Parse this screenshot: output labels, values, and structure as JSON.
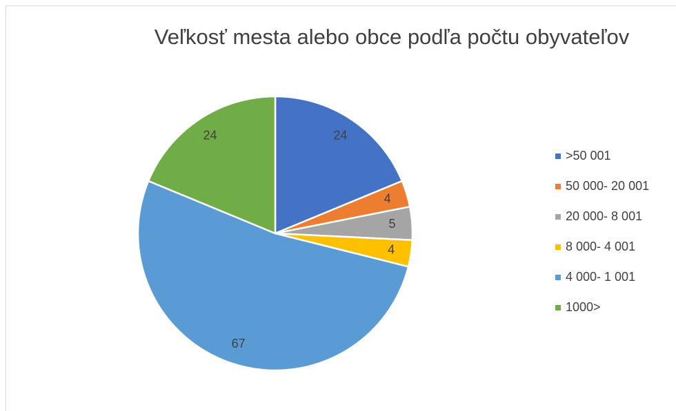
{
  "chart_data": {
    "type": "pie",
    "title": "Veľkosť mesta alebo obce podľa počtu obyvateľov",
    "categories": [
      ">50 001",
      "50 000- 20 001",
      "20 000- 8 001",
      "8 000- 4 001",
      "4 000- 1 001",
      "1000>"
    ],
    "values": [
      24,
      4,
      5,
      4,
      67,
      24
    ],
    "colors": [
      "#4472c4",
      "#ed7d31",
      "#a5a5a5",
      "#ffc000",
      "#5b9bd5",
      "#70ad47"
    ],
    "legend": "right"
  }
}
